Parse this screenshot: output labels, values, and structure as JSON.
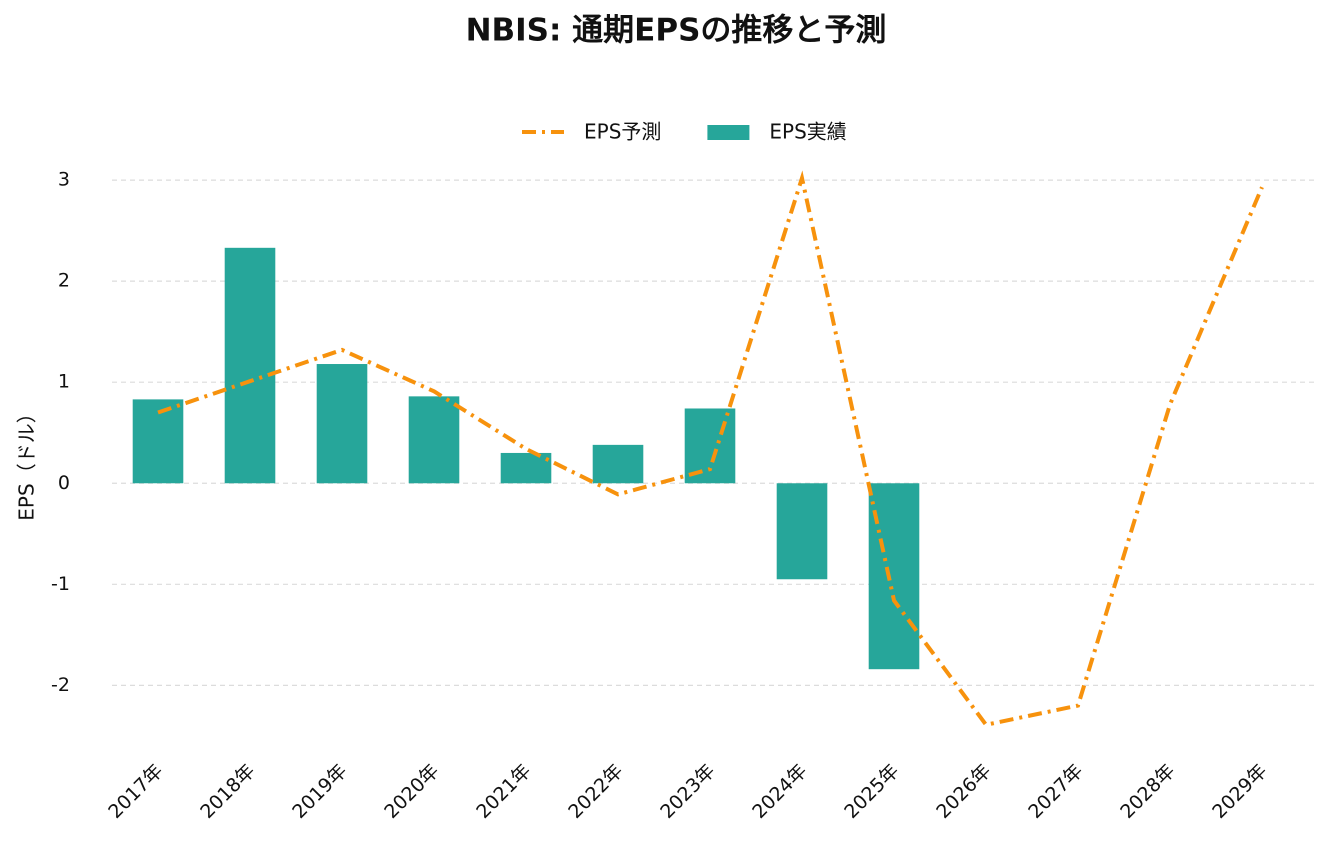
{
  "chart_data": {
    "type": "combo",
    "title": "NBIS: 通期EPSの推移と予測",
    "y_label": "EPS（ドル）",
    "categories": [
      "2017年",
      "2018年",
      "2019年",
      "2020年",
      "2021年",
      "2022年",
      "2023年",
      "2024年",
      "2025年",
      "2026年",
      "2027年",
      "2028年",
      "2029年"
    ],
    "series": [
      {
        "name": "EPS予測",
        "kind": "line",
        "color": "#f7920d",
        "values": [
          0.7,
          1.01,
          1.32,
          0.91,
          0.34,
          -0.11,
          0.14,
          3.02,
          -1.16,
          -2.39,
          -2.2,
          0.78,
          2.93
        ]
      },
      {
        "name": "EPS実績",
        "kind": "bar",
        "color": "#26a69a",
        "values": [
          0.83,
          2.33,
          1.18,
          0.86,
          0.3,
          0.38,
          0.74,
          -0.95,
          -1.84,
          null,
          null,
          null,
          null
        ]
      }
    ],
    "ylim": [
      -2.6,
      3.1
    ],
    "yticks": [
      -2,
      -1,
      0,
      1,
      2,
      3
    ],
    "grid": true
  }
}
